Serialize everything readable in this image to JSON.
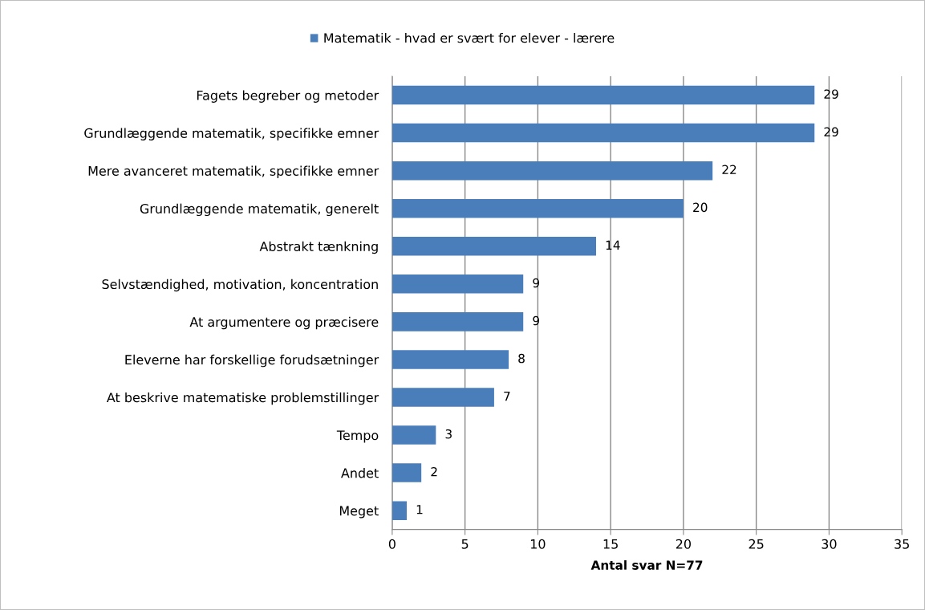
{
  "chart_data": {
    "type": "bar",
    "orientation": "horizontal",
    "categories": [
      "Fagets begreber og metoder",
      "Grundlæggende matematik, specifikke emner",
      "Mere avanceret matematik, specifikke emner",
      "Grundlæggende matematik, generelt",
      "Abstrakt tænkning",
      "Selvstændighed, motivation, koncentration",
      "At argumentere og præcisere",
      "Eleverne har forskellige forudsætninger",
      "At beskrive matematiske problemstillinger",
      "Tempo",
      "Andet",
      "Meget"
    ],
    "series": [
      {
        "name": "Matematik - hvad er svært for elever - lærere",
        "color": "#4a7ebb",
        "values": [
          29,
          29,
          22,
          20,
          14,
          9,
          9,
          8,
          7,
          3,
          2,
          1
        ]
      }
    ],
    "xlabel": "Antal svar N=77",
    "xlim": [
      0,
      35
    ],
    "xticks": [
      0,
      5,
      10,
      15,
      20,
      25,
      30,
      35
    ],
    "grid": "x",
    "legend": "top",
    "data_labels": true
  }
}
